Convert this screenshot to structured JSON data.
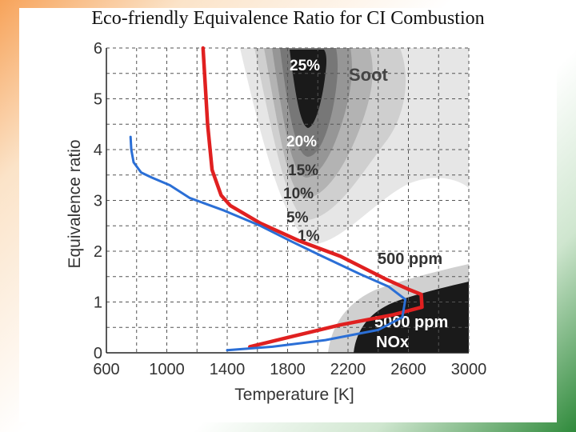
{
  "slide": {
    "title": "Eco-friendly Equivalence Ratio for CI Combustion"
  },
  "chart_data": {
    "type": "contour-with-lines",
    "xlabel": "Temperature [K]",
    "ylabel": "Equivalence ratio",
    "xlim": [
      600,
      3000
    ],
    "ylim": [
      0,
      6
    ],
    "xticks": [
      600,
      1000,
      1400,
      1800,
      2200,
      2600,
      3000
    ],
    "yticks": [
      0,
      1,
      2,
      3,
      4,
      5,
      6
    ],
    "grid": "dashed",
    "soot_region": {
      "label": "Soot",
      "levels": [
        "1%",
        "5%",
        "10%",
        "15%",
        "20%",
        "25%"
      ],
      "fills": [
        "#e6e6e6",
        "#cfcfcf",
        "#b3b3b3",
        "#969696",
        "#777777",
        "#1a1a1a"
      ]
    },
    "nox_region": {
      "label": "NOx",
      "levels": [
        "500 ppm",
        "5000 ppm"
      ],
      "fills": [
        "#d0d0d0",
        "#1a1a1a"
      ]
    },
    "series": [
      {
        "name": "red-path",
        "color": "#e02020",
        "points": [
          [
            1240,
            6.0
          ],
          [
            1250,
            5.5
          ],
          [
            1270,
            4.5
          ],
          [
            1300,
            3.6
          ],
          [
            1360,
            3.1
          ],
          [
            1420,
            2.9
          ],
          [
            1620,
            2.55
          ],
          [
            1880,
            2.2
          ],
          [
            2150,
            1.9
          ],
          [
            2450,
            1.45
          ],
          [
            2600,
            1.25
          ],
          [
            2685,
            1.15
          ],
          [
            2690,
            0.9
          ],
          [
            2500,
            0.75
          ],
          [
            2150,
            0.55
          ],
          [
            1800,
            0.3
          ],
          [
            1550,
            0.12
          ]
        ]
      },
      {
        "name": "blue-path",
        "color": "#2b6fd6",
        "points": [
          [
            760,
            4.25
          ],
          [
            765,
            4.0
          ],
          [
            780,
            3.75
          ],
          [
            830,
            3.55
          ],
          [
            900,
            3.45
          ],
          [
            1020,
            3.3
          ],
          [
            1150,
            3.05
          ],
          [
            1380,
            2.8
          ],
          [
            1620,
            2.5
          ],
          [
            1820,
            2.2
          ],
          [
            2030,
            1.9
          ],
          [
            2280,
            1.55
          ],
          [
            2470,
            1.3
          ],
          [
            2580,
            1.05
          ],
          [
            2560,
            0.7
          ],
          [
            2400,
            0.45
          ],
          [
            2050,
            0.25
          ],
          [
            1700,
            0.12
          ],
          [
            1400,
            0.05
          ]
        ]
      }
    ]
  }
}
